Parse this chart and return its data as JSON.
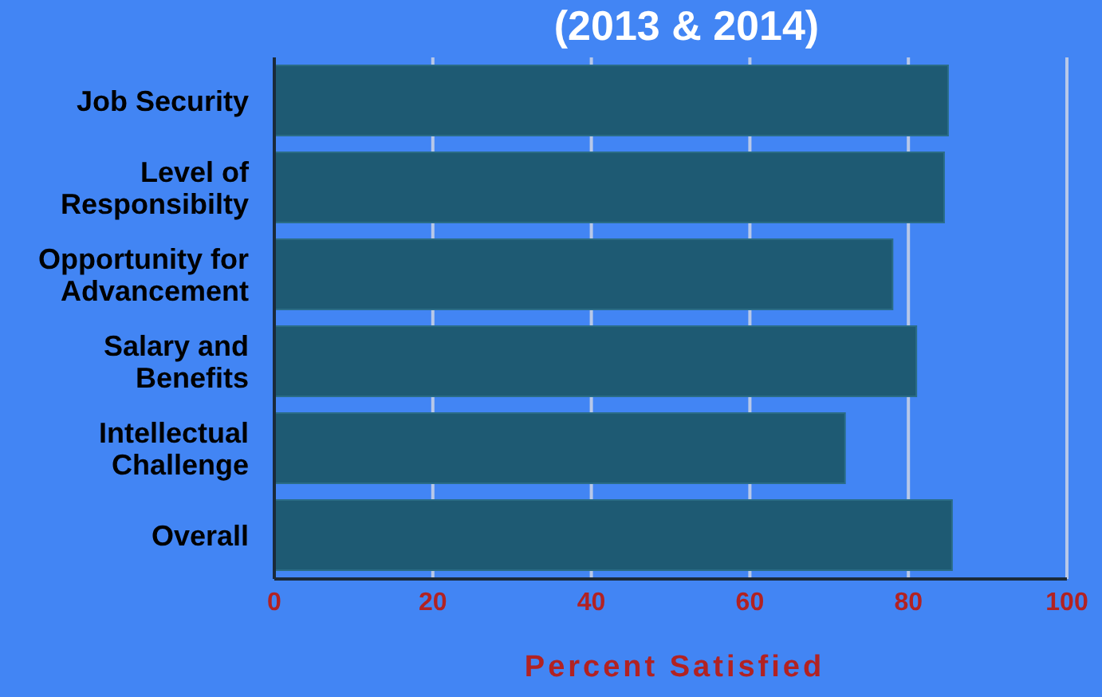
{
  "chart_data": {
    "type": "bar",
    "orientation": "horizontal",
    "title": "(2013 & 2014)",
    "xlabel": "Percent Satisfied",
    "categories": [
      "Job Security",
      "Level of Responsibilty",
      "Opportunity for Advancement",
      "Salary and Benefits",
      "Intellectual Challenge",
      "Overall"
    ],
    "values": [
      85,
      84.5,
      78,
      81,
      72,
      85.5
    ],
    "color": "#1e5a73",
    "xlim": [
      0,
      100
    ],
    "xticks": [
      0,
      20,
      40,
      60,
      80,
      100
    ],
    "grid": "x"
  }
}
